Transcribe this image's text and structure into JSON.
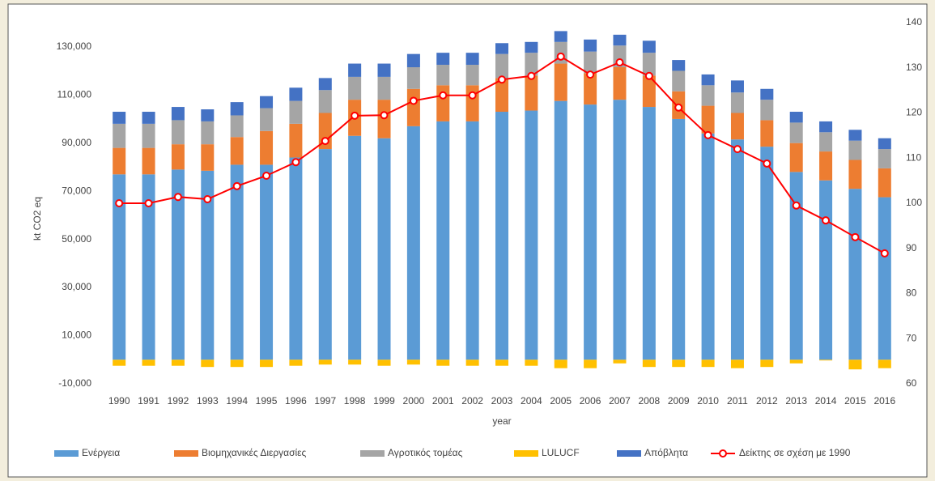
{
  "chart_data": {
    "type": "bar",
    "stacked": true,
    "ylabel": "kt CO2 eq",
    "xlabel": "year",
    "categories": [
      "1990",
      "1991",
      "1992",
      "1993",
      "1994",
      "1995",
      "1996",
      "1997",
      "1998",
      "1999",
      "2000",
      "2001",
      "2002",
      "2003",
      "2004",
      "2005",
      "2006",
      "2007",
      "2008",
      "2009",
      "2010",
      "2011",
      "2012",
      "2013",
      "2014",
      "2015",
      "2016"
    ],
    "series": [
      {
        "name": "Ενέργεια",
        "color": "#5b9bd5",
        "values": [
          77000,
          77000,
          79000,
          78500,
          81000,
          81000,
          84000,
          87500,
          93000,
          92000,
          97000,
          99000,
          99000,
          103000,
          103500,
          107500,
          106000,
          108000,
          105000,
          100000,
          94000,
          91500,
          88500,
          78000,
          74500,
          71000,
          67500
        ]
      },
      {
        "name": "Βιομηχανικές Διεργασίες",
        "color": "#ed7d31",
        "values": [
          11000,
          11000,
          10500,
          11000,
          11500,
          14000,
          14000,
          15000,
          15000,
          16000,
          15500,
          15000,
          15000,
          14000,
          14500,
          15500,
          13000,
          13500,
          13000,
          11500,
          11500,
          11000,
          11000,
          12000,
          12000,
          12000,
          12000
        ]
      },
      {
        "name": "Αγροτικός τομέας",
        "color": "#a5a5a5",
        "values": [
          10000,
          10000,
          10000,
          9500,
          9000,
          9500,
          9500,
          9500,
          9500,
          9500,
          9000,
          8500,
          8500,
          10000,
          9500,
          9000,
          9000,
          9000,
          9500,
          8500,
          8500,
          8500,
          8500,
          8500,
          8000,
          8000,
          8000
        ]
      },
      {
        "name": "LULUCF",
        "color": "#ffc000",
        "values": [
          -2500,
          -2500,
          -2500,
          -3000,
          -3000,
          -3000,
          -2500,
          -2000,
          -2000,
          -2500,
          -2000,
          -2500,
          -2500,
          -2500,
          -2500,
          -3500,
          -3500,
          -1500,
          -3000,
          -3000,
          -3000,
          -3500,
          -3000,
          -1500,
          -300,
          -4000,
          -3500
        ]
      },
      {
        "name": "Απόβλητα",
        "color": "#4472c4",
        "values": [
          5000,
          5000,
          5500,
          5000,
          5500,
          5000,
          5500,
          5000,
          5500,
          5500,
          5500,
          5000,
          5000,
          4500,
          4500,
          4500,
          5000,
          4500,
          5000,
          4500,
          4500,
          5000,
          4500,
          4500,
          4500,
          4500,
          4500
        ]
      },
      {
        "name": "Δείκτης σε σχέση με 1990",
        "color": "#ff0000",
        "type": "line",
        "axis": "y2",
        "values": [
          100,
          100,
          101.4,
          100.9,
          103.8,
          106.1,
          109.1,
          113.8,
          119.4,
          119.5,
          122.7,
          123.9,
          123.9,
          127.4,
          128.2,
          132.5,
          128.5,
          131.2,
          128.2,
          121.2,
          115.1,
          112,
          108.8,
          99.5,
          96.2,
          92.5,
          88.9
        ]
      }
    ],
    "ylim": [
      -10000,
      140000
    ],
    "yticks": [
      {
        "value": -10000,
        "label": "-10,000"
      },
      {
        "value": 10000,
        "label": "10,000"
      },
      {
        "value": 30000,
        "label": "30,000"
      },
      {
        "value": 50000,
        "label": "50,000"
      },
      {
        "value": 70000,
        "label": "70,000"
      },
      {
        "value": 90000,
        "label": "90,000"
      },
      {
        "value": 110000,
        "label": "110,000"
      },
      {
        "value": 130000,
        "label": "130,000"
      }
    ],
    "y2lim": [
      60,
      140
    ],
    "y2ticks": [
      60,
      70,
      80,
      90,
      100,
      110,
      120,
      130,
      140
    ],
    "grid": false,
    "legend": "bottom"
  }
}
